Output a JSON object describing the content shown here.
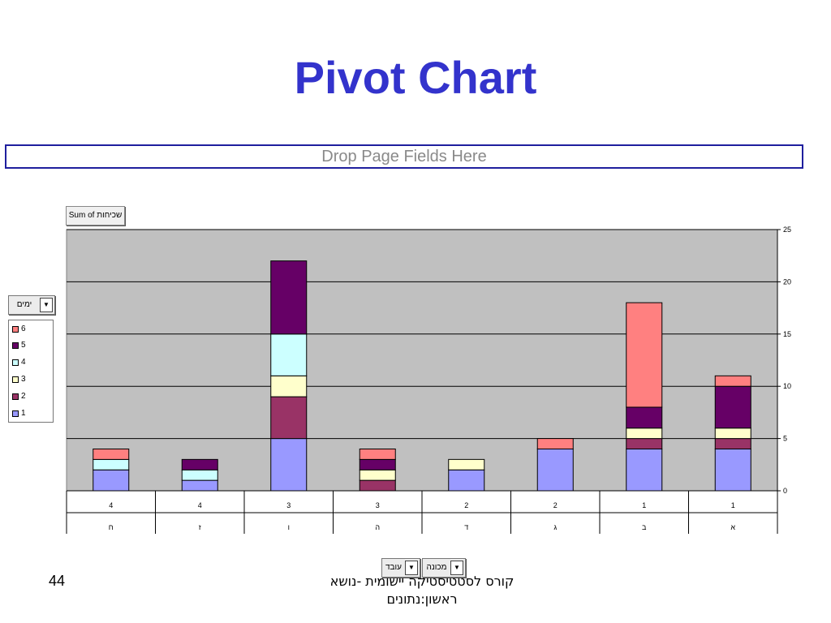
{
  "title": "Pivot Chart",
  "drop_page_fields": "Drop Page Fields Here",
  "data_field_button": "Sum of שכיחות",
  "legend": {
    "field": "ימים",
    "items": [
      {
        "label": "6",
        "color": "#ff8080"
      },
      {
        "label": "5",
        "color": "#660066"
      },
      {
        "label": "4",
        "color": "#ccffff"
      },
      {
        "label": "3",
        "color": "#ffffcc"
      },
      {
        "label": "2",
        "color": "#993366"
      },
      {
        "label": "1",
        "color": "#9999ff"
      }
    ]
  },
  "axis_fields": [
    "מכונה",
    "עובד"
  ],
  "footer": {
    "slide_number": "44",
    "line1": "קורס לסטטיסטיקה יישומית -נושא",
    "line2": "ראשון:נתונים"
  },
  "colors": {
    "plot_bg": "#c0c0c0",
    "title": "#3333cc"
  },
  "chart_data": {
    "type": "bar",
    "stacked": true,
    "categories": [
      {
        "top": "4",
        "bottom": "ח"
      },
      {
        "top": "4",
        "bottom": "ז"
      },
      {
        "top": "3",
        "bottom": "ו"
      },
      {
        "top": "3",
        "bottom": "ה"
      },
      {
        "top": "2",
        "bottom": "ד"
      },
      {
        "top": "2",
        "bottom": "ג"
      },
      {
        "top": "1",
        "bottom": "ב"
      },
      {
        "top": "1",
        "bottom": "א"
      }
    ],
    "series": [
      {
        "name": "1",
        "color": "#9999ff",
        "values": [
          2,
          1,
          5,
          0,
          2,
          4,
          4,
          4
        ]
      },
      {
        "name": "2",
        "color": "#993366",
        "values": [
          0,
          0,
          4,
          1,
          0,
          0,
          1,
          1
        ]
      },
      {
        "name": "3",
        "color": "#ffffcc",
        "values": [
          0,
          0,
          2,
          1,
          1,
          0,
          1,
          1
        ]
      },
      {
        "name": "4",
        "color": "#ccffff",
        "values": [
          1,
          1,
          4,
          0,
          0,
          0,
          0,
          0
        ]
      },
      {
        "name": "5",
        "color": "#660066",
        "values": [
          0,
          1,
          7,
          1,
          0,
          0,
          2,
          4
        ]
      },
      {
        "name": "6",
        "color": "#ff8080",
        "values": [
          1,
          0,
          0,
          1,
          0,
          1,
          10,
          1
        ]
      }
    ],
    "ylim": [
      0,
      25
    ],
    "yticks": [
      0,
      5,
      10,
      15,
      20,
      25
    ],
    "y_axis_position": "right",
    "grid": true,
    "legend_position": "left"
  }
}
